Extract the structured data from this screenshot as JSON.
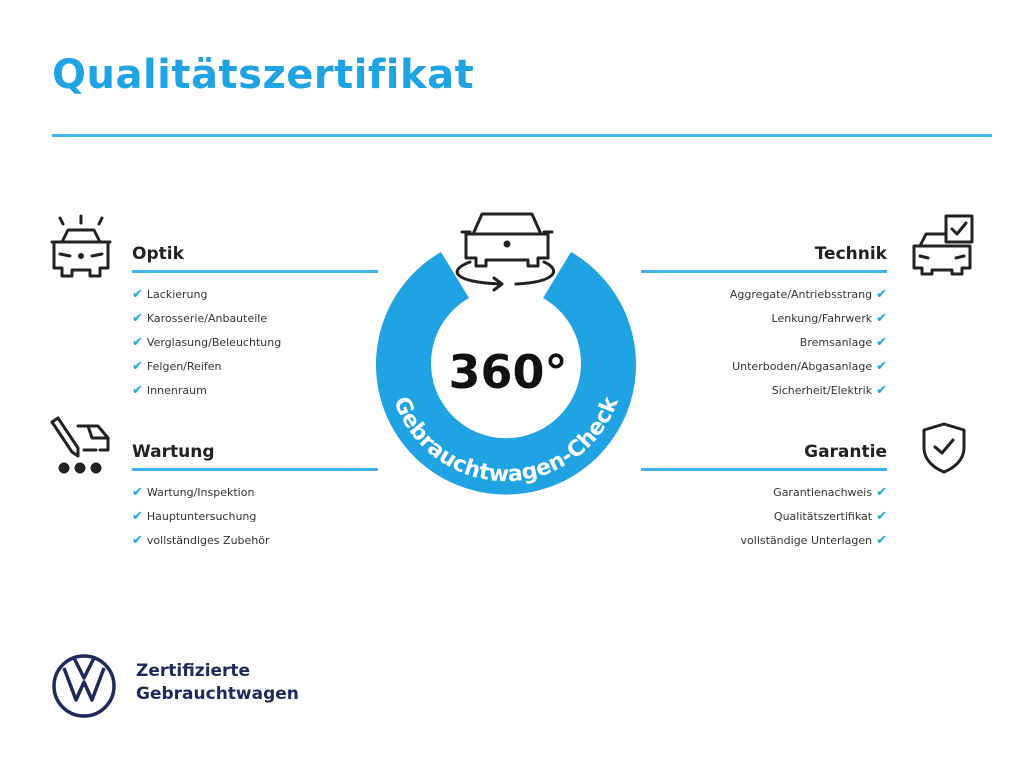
{
  "header": {
    "title": "Qualitätszertifikat"
  },
  "accent_color": "#1fa3e3",
  "center": {
    "label": "360°",
    "ring_text": "Gebrauchtwagen-Check",
    "icon": "car-rotate-icon"
  },
  "sections": {
    "optik": {
      "title": "Optik",
      "icon": "car-lights-icon",
      "items": [
        "Lackierung",
        "Karosserie/Anbauteile",
        "Verglasung/Beleuchtung",
        "Felgen/Reifen",
        "Innenraum"
      ]
    },
    "technik": {
      "title": "Technik",
      "icon": "car-checklist-icon",
      "items": [
        "Aggregate/Antriebsstrang",
        "Lenkung/Fahrwerk",
        "Bremsanlage",
        "Unterboden/Abgasanlage",
        "Sicherheit/Elektrik"
      ]
    },
    "wartung": {
      "title": "Wartung",
      "icon": "car-service-icon",
      "items": [
        "Wartung/Inspektion",
        "Hauptuntersuchung",
        "vollständiges Zubehör"
      ]
    },
    "garantie": {
      "title": "Garantie",
      "icon": "shield-check-icon",
      "items": [
        "Garantienachweis",
        "Qualitätszertifikat",
        "vollständige Unterlagen"
      ]
    }
  },
  "footer": {
    "line1": "Zertifizierte",
    "line2": "Gebrauchtwagen",
    "logo": "vw-logo"
  },
  "check_mark": "✔"
}
